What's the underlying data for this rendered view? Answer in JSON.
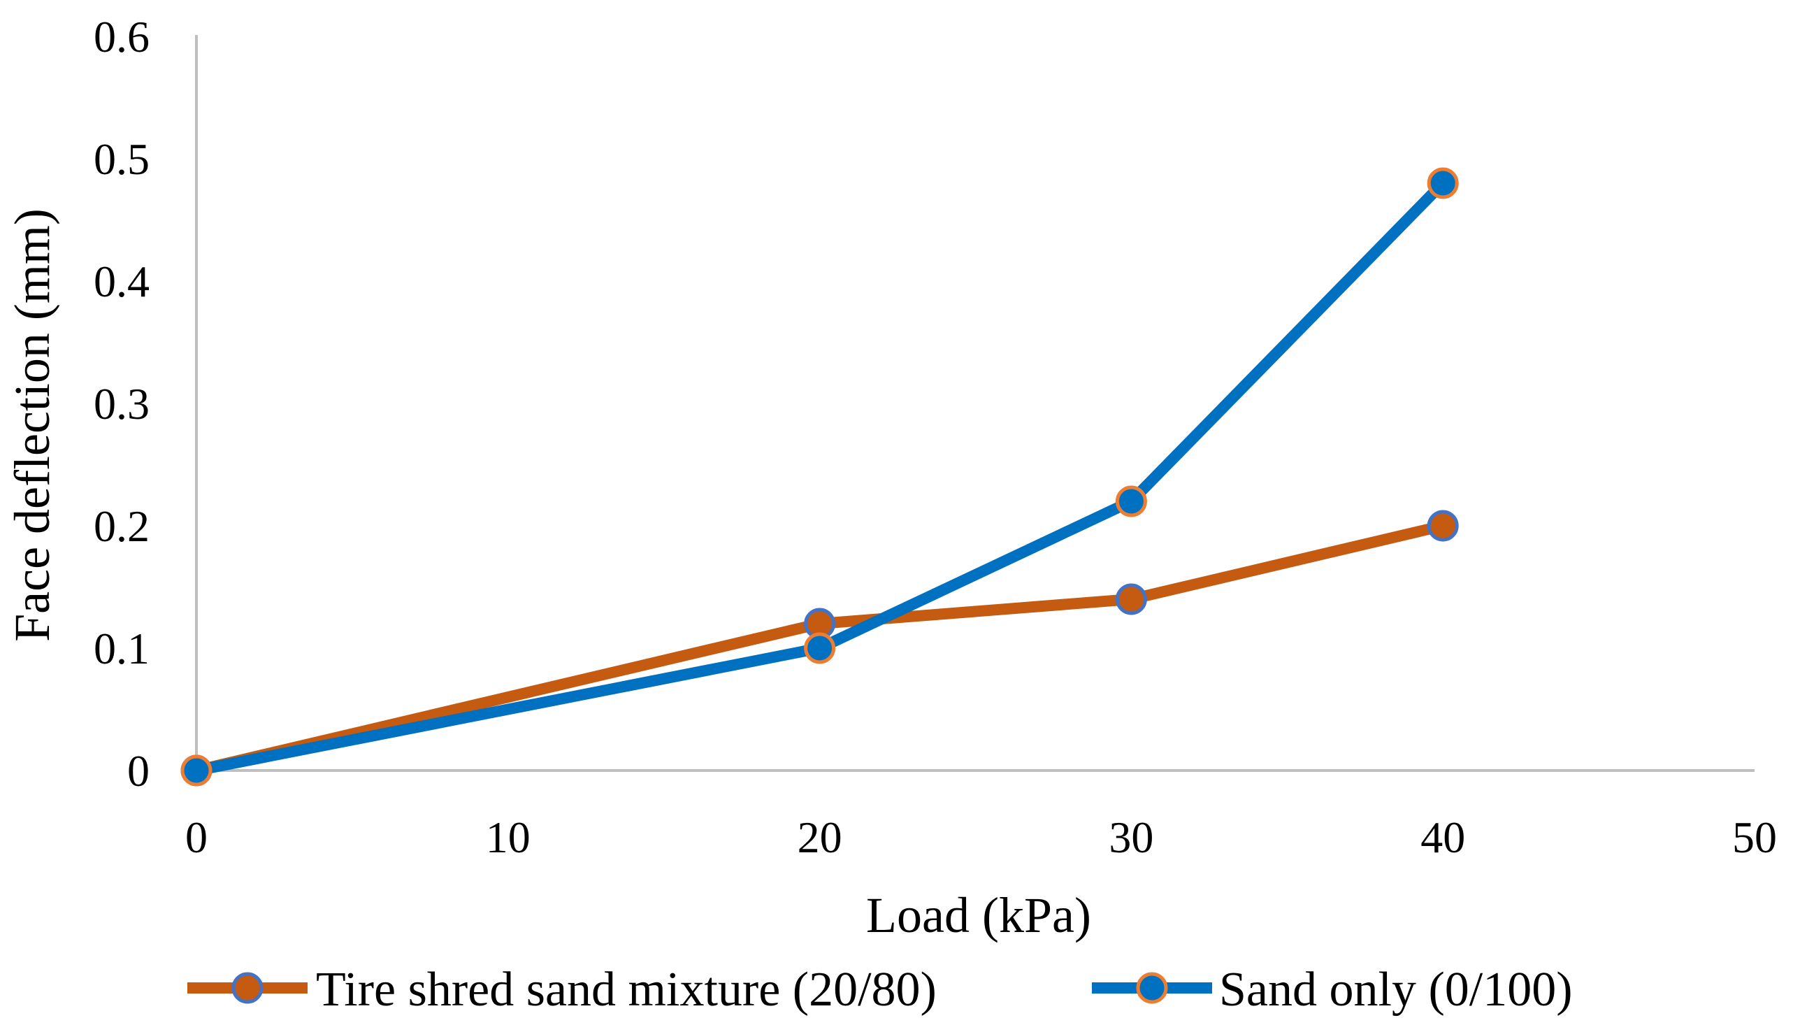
{
  "chart_data": {
    "type": "line",
    "title": "",
    "xlabel": "Load (kPa)",
    "ylabel": "Face deflection (mm)",
    "xlim": [
      0,
      50
    ],
    "ylim": [
      0,
      0.6
    ],
    "xticks": [
      "0",
      "10",
      "20",
      "30",
      "40",
      "50"
    ],
    "yticks": [
      "0",
      "0.1",
      "0.2",
      "0.3",
      "0.4",
      "0.5",
      "0.6"
    ],
    "grid": false,
    "legend_position": "bottom",
    "series": [
      {
        "name": "Tire shred sand mixture (20/80)",
        "line_color": "#C55A11",
        "marker_fill": "#C55A11",
        "marker_edge": "#4472C4",
        "x": [
          0,
          20,
          30,
          40
        ],
        "y": [
          0,
          0.12,
          0.14,
          0.2
        ]
      },
      {
        "name": "Sand only (0/100)",
        "line_color": "#0070C0",
        "marker_fill": "#0070C0",
        "marker_edge": "#ED7D31",
        "x": [
          0,
          20,
          30,
          40
        ],
        "y": [
          0,
          0.1,
          0.22,
          0.48
        ]
      }
    ]
  }
}
